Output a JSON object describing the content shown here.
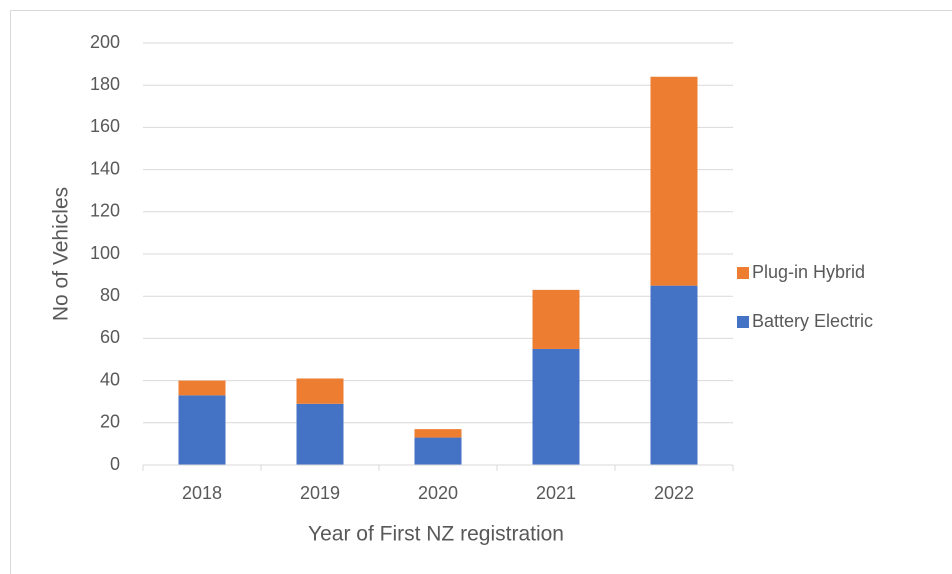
{
  "chart_data": {
    "type": "stacked_bar",
    "categories": [
      "2018",
      "2019",
      "2020",
      "2021",
      "2022"
    ],
    "series": [
      {
        "name": "Battery Electric",
        "color": "#4472c4",
        "values": [
          33,
          29,
          13,
          55,
          85
        ]
      },
      {
        "name": "Plug-in Hybrid",
        "color": "#ed7d31",
        "values": [
          7,
          12,
          4,
          28,
          99
        ]
      }
    ],
    "x_label": "Year of First NZ registration",
    "y_label": "No of Vehicles",
    "ylim": [
      0,
      200
    ],
    "yticks": [
      0,
      20,
      40,
      60,
      80,
      100,
      120,
      140,
      160,
      180,
      200
    ],
    "grid": true,
    "legend": "right"
  }
}
